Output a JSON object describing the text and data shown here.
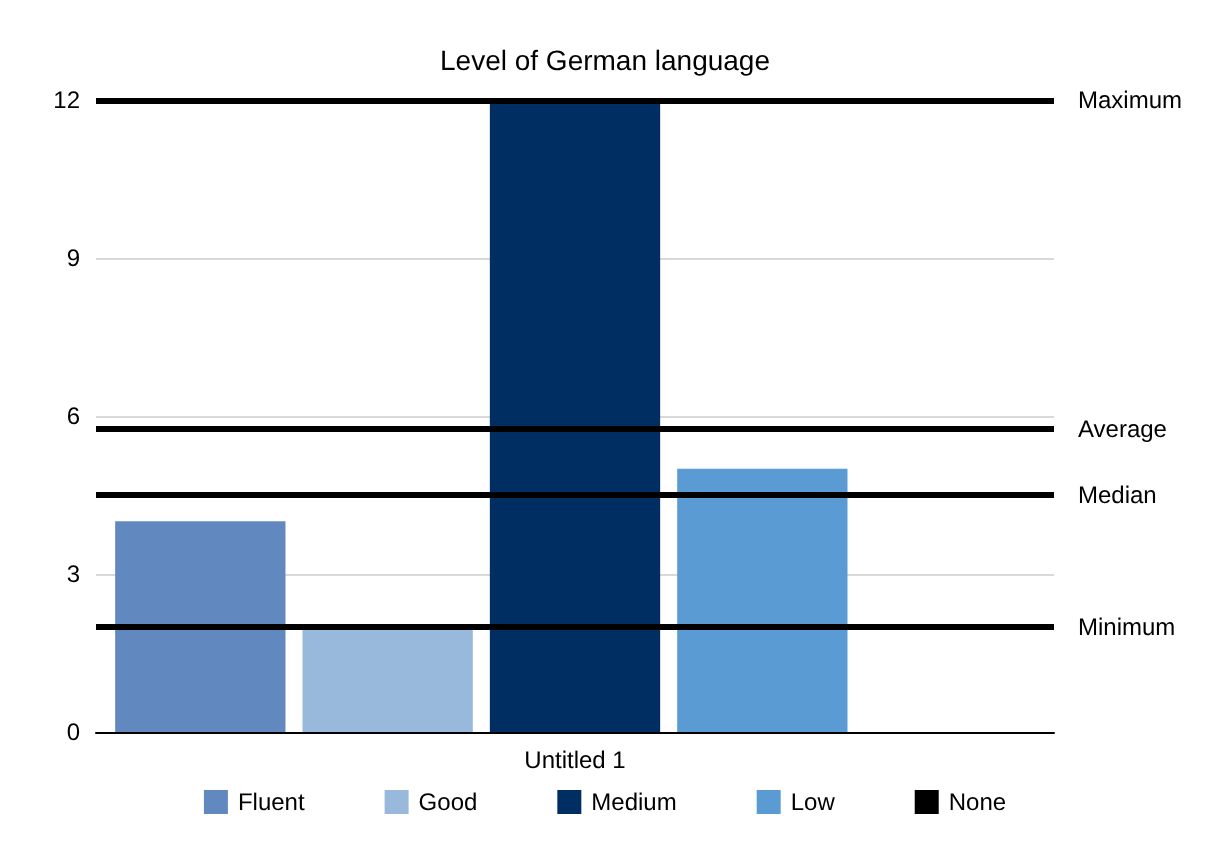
{
  "chart_data": {
    "type": "bar",
    "title": "Level of German language",
    "categories": [
      "Untitled 1"
    ],
    "series": [
      {
        "name": "Fluent",
        "color": "#6189bf",
        "values": [
          4
        ]
      },
      {
        "name": "Good",
        "color": "#98b9dc",
        "values": [
          2
        ]
      },
      {
        "name": "Medium",
        "color": "#002e63",
        "values": [
          12
        ]
      },
      {
        "name": "Low",
        "color": "#5b9bd4",
        "values": [
          5
        ]
      },
      {
        "name": "None",
        "color": "#000000",
        "values": [
          0
        ]
      }
    ],
    "ylim": [
      0,
      12
    ],
    "yticks": [
      0,
      3,
      6,
      9,
      12
    ],
    "grid": "y",
    "legend": "bottom",
    "ref_lines": [
      {
        "axis": "y",
        "value": 12,
        "label": "Maximum"
      },
      {
        "axis": "y",
        "value": 5.75,
        "label": "Average"
      },
      {
        "axis": "y",
        "value": 4.5,
        "label": "Median"
      },
      {
        "axis": "y",
        "value": 2,
        "label": "Minimum"
      }
    ]
  }
}
